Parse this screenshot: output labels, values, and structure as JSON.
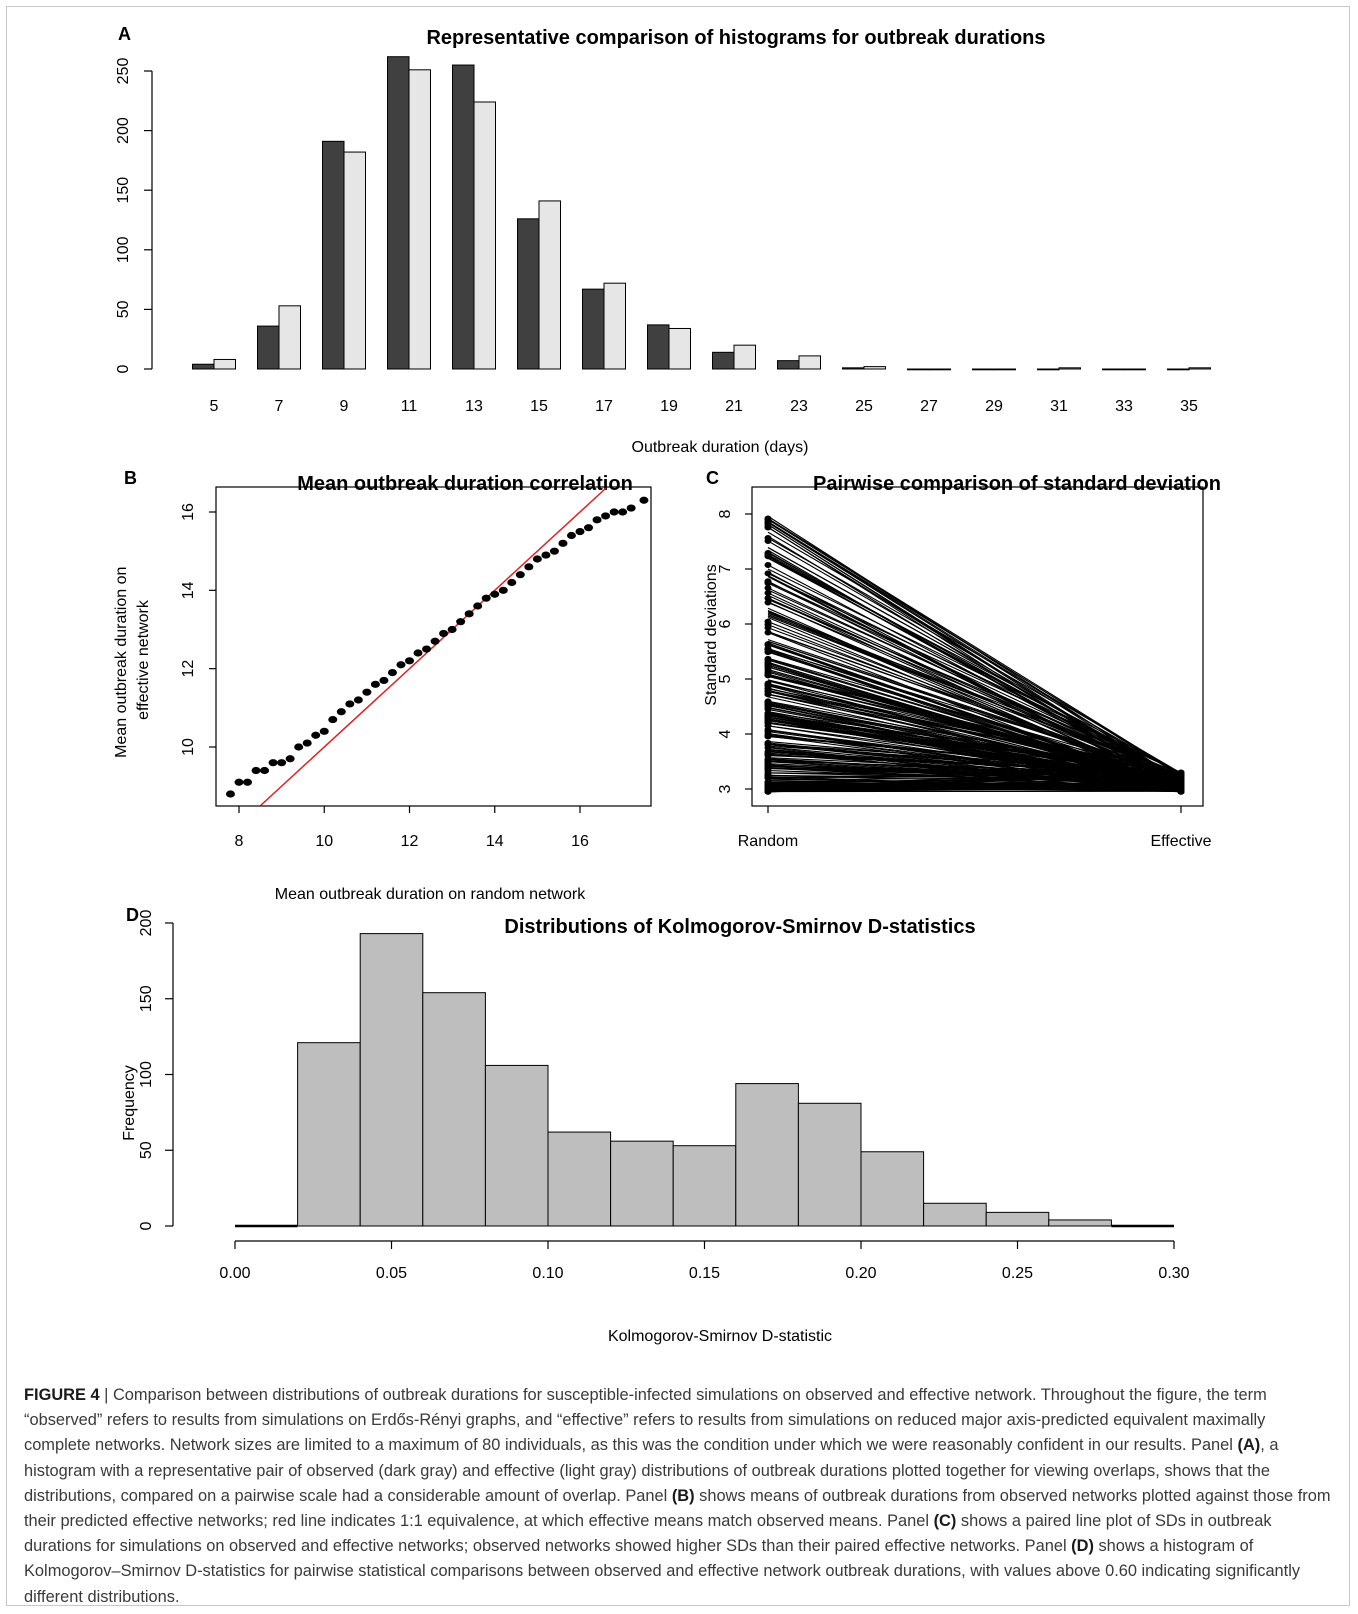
{
  "chart_data": [
    {
      "panel": "A",
      "type": "bar",
      "title": "Representative comparison of histograms for outbreak durations",
      "xlabel": "Outbreak duration (days)",
      "ylabel": "",
      "ylim": [
        0,
        250
      ],
      "yticks": [
        0,
        50,
        100,
        150,
        200,
        250
      ],
      "categories": [
        "5",
        "7",
        "9",
        "11",
        "13",
        "15",
        "17",
        "19",
        "21",
        "23",
        "25",
        "27",
        "29",
        "31",
        "33",
        "35"
      ],
      "series": [
        {
          "values": [
            4,
            36,
            191,
            262,
            255,
            126,
            67,
            37,
            14,
            7,
            1,
            0,
            0,
            0,
            0,
            0
          ],
          "color": "#404040"
        },
        {
          "values": [
            8,
            53,
            182,
            251,
            224,
            141,
            72,
            34,
            20,
            11,
            2,
            0,
            0,
            1,
            0,
            1
          ],
          "color": "#e6e6e6"
        }
      ],
      "grid": false
    },
    {
      "panel": "B",
      "type": "scatter",
      "title": "Mean outbreak duration correlation",
      "xlabel": "Mean outbreak duration on random network",
      "ylabel": "Mean outbreak duration on\neffective network",
      "xlim": [
        7.6,
        18.0
      ],
      "ylim": [
        8.5,
        16.6
      ],
      "xticks": [
        8,
        10,
        12,
        14,
        16
      ],
      "yticks": [
        10,
        12,
        14,
        16
      ],
      "reference_line": {
        "slope": 1,
        "intercept": 0,
        "color": "#e02020"
      },
      "x": [
        7.8,
        8.0,
        8.2,
        8.4,
        8.6,
        8.8,
        9.0,
        9.2,
        9.4,
        9.6,
        9.8,
        10.0,
        10.2,
        10.4,
        10.6,
        10.8,
        11.0,
        11.2,
        11.4,
        11.6,
        11.8,
        12.0,
        12.2,
        12.4,
        12.6,
        12.8,
        13.0,
        13.2,
        13.4,
        13.6,
        13.8,
        14.0,
        14.2,
        14.4,
        14.6,
        14.8,
        15.0,
        15.2,
        15.4,
        15.6,
        15.8,
        16.0,
        16.2,
        16.4,
        16.6,
        16.8,
        17.0,
        17.2,
        17.5
      ],
      "y": [
        8.8,
        9.1,
        9.1,
        9.4,
        9.4,
        9.6,
        9.6,
        9.7,
        10.0,
        10.1,
        10.3,
        10.4,
        10.7,
        10.9,
        11.1,
        11.2,
        11.4,
        11.6,
        11.7,
        11.9,
        12.1,
        12.2,
        12.4,
        12.5,
        12.7,
        12.9,
        13.0,
        13.2,
        13.4,
        13.6,
        13.8,
        13.9,
        14.0,
        14.2,
        14.4,
        14.6,
        14.8,
        14.9,
        15.0,
        15.2,
        15.4,
        15.5,
        15.6,
        15.8,
        15.9,
        16.0,
        16.0,
        16.1,
        16.3
      ],
      "grid": false
    },
    {
      "panel": "C",
      "type": "line",
      "title": "Pairwise comparison of standard deviation",
      "xlabel": "",
      "ylabel": "Standard deviations",
      "categories": [
        "Random",
        "Effective"
      ],
      "ylim": [
        2.8,
        8.4
      ],
      "yticks": [
        3,
        4,
        5,
        6,
        7,
        8
      ],
      "random_range": [
        2.95,
        8.2
      ],
      "effective_range": [
        2.95,
        3.3
      ],
      "grid": false
    },
    {
      "panel": "D",
      "type": "bar",
      "title": "Distributions of Kolmogorov-Smirnov D-statistics",
      "xlabel": "Kolmogorov-Smirnov D-statistic",
      "ylabel": "Frequency",
      "bin_edges": [
        0.0,
        0.02,
        0.04,
        0.06,
        0.08,
        0.1,
        0.12,
        0.14,
        0.16,
        0.18,
        0.2,
        0.22,
        0.24,
        0.26,
        0.28,
        0.3
      ],
      "values": [
        0,
        121,
        193,
        154,
        106,
        62,
        56,
        53,
        94,
        81,
        49,
        15,
        9,
        4,
        0
      ],
      "xlim": [
        0.0,
        0.3
      ],
      "xticks": [
        "0.00",
        "0.05",
        "0.10",
        "0.15",
        "0.20",
        "0.25",
        "0.30"
      ],
      "ylim": [
        0,
        200
      ],
      "yticks": [
        0,
        50,
        100,
        150,
        200
      ],
      "color": "#bebebe",
      "grid": false
    }
  ],
  "caption": {
    "figure_label": "FIGURE 4",
    "separator": " | ",
    "part1": "Comparison between distributions of outbreak durations for susceptible-infected simulations on observed and effective network. Throughout the figure, the term “observed” refers to results from simulations on Erdős-Rényi graphs, and “effective” refers to results from simulations on reduced major axis-predicted equivalent maximally complete networks. Network sizes are limited to a maximum of 80 individuals, as this was the condition under which we were reasonably confident in our results. Panel ",
    "ref_a": "(A)",
    "part2": ", a histogram with a representative pair of observed (dark gray) and effective (light gray) distributions of outbreak durations plotted together for viewing overlaps, shows that the distributions, compared on a pairwise scale had a considerable amount of overlap. Panel ",
    "ref_b": "(B)",
    "part3": " shows means of outbreak durations from observed networks plotted against those from their predicted effective networks; red line indicates 1:1 equivalence, at which effective means match observed means. Panel ",
    "ref_c": "(C)",
    "part4": " shows a paired line plot of SDs in outbreak durations for simulations on observed and effective networks; observed networks showed higher SDs than their paired effective networks. Panel ",
    "ref_d": "(D)",
    "part5": " shows a histogram of Kolmogorov–Smirnov D-statistics for pairwise statistical comparisons between observed and effective network outbreak durations, with values above 0.60 indicating significantly different distributions."
  },
  "panel_letters": [
    "A",
    "B",
    "C",
    "D"
  ]
}
